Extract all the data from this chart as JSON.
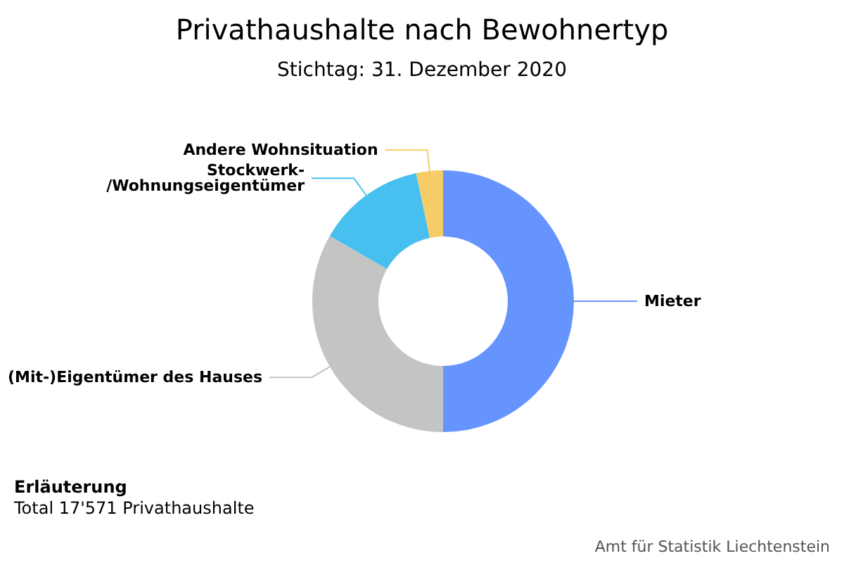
{
  "chart_data": {
    "type": "donut",
    "title": "Privathaushalte nach Bewohnertyp",
    "subtitle": "Stichtag: 31. Dezember 2020",
    "categories": [
      "Mieter",
      "(Mit-)Eigentümer des Hauses",
      "Stockwerk-\n/Wohnungseigentümer",
      "Andere Wohnsituation"
    ],
    "values": [
      50,
      33.3,
      13.4,
      3.3
    ],
    "colors": [
      "#6694ff",
      "#c4c4c4",
      "#48c0ef",
      "#f5cc66"
    ],
    "annotations": [
      "Erläuterung",
      "Total 17'571 Privathaushalte",
      "Amt für Statistik Liechtenstein"
    ]
  }
}
